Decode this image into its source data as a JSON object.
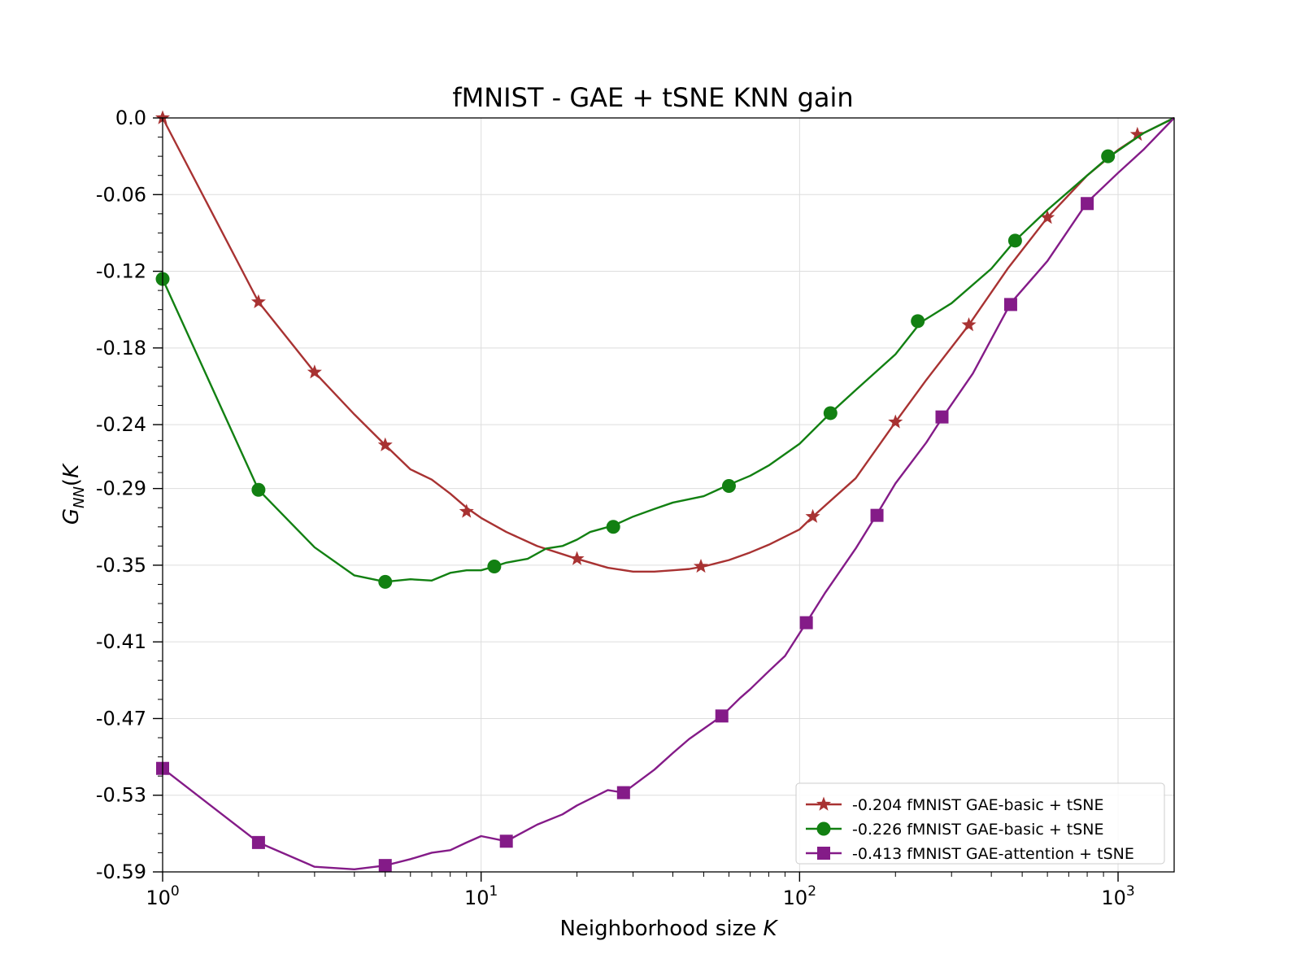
{
  "chart_data": {
    "type": "line",
    "title": "fMNIST - GAE + tSNE KNN gain",
    "xlabel": "Neighborhood size",
    "xlabel_var": "K",
    "ylabel": "G_NN(K)",
    "ylabel_parts": {
      "main": "G",
      "sub": "NN",
      "arg_open": "(",
      "arg": "K",
      "arg_close": ")"
    },
    "xscale": "log",
    "xlim": [
      1,
      1500
    ],
    "ylim": [
      -0.59,
      0.0
    ],
    "yticks": [
      0.0,
      -0.06,
      -0.12,
      -0.18,
      -0.24,
      -0.29,
      -0.35,
      -0.41,
      -0.47,
      -0.53,
      -0.59
    ],
    "ytick_labels": [
      "0.0",
      "-0.06",
      "-0.12",
      "-0.18",
      "-0.24",
      "-0.29",
      "-0.35",
      "-0.41",
      "-0.47",
      "-0.53",
      "-0.59"
    ],
    "xticks": [
      1,
      10,
      100,
      1000
    ],
    "xtick_labels": [
      {
        "base": "10",
        "exp": "0"
      },
      {
        "base": "10",
        "exp": "1"
      },
      {
        "base": "10",
        "exp": "2"
      },
      {
        "base": "10",
        "exp": "3"
      }
    ],
    "grid": true,
    "legend_position": "lower-right",
    "series": [
      {
        "name": "-0.204 fMNIST GAE-basic + tSNE",
        "color": "#a83232",
        "marker": "star",
        "x": [
          1,
          2,
          3,
          4,
          5,
          6,
          7,
          8,
          9,
          10,
          12,
          15,
          20,
          25,
          30,
          35,
          40,
          45,
          50,
          60,
          70,
          80,
          100,
          110,
          150,
          200,
          250,
          340,
          450,
          600,
          800,
          1000,
          1200,
          1500
        ],
        "y": [
          0.0,
          -0.144,
          -0.199,
          -0.232,
          -0.256,
          -0.275,
          -0.283,
          -0.294,
          -0.305,
          -0.313,
          -0.324,
          -0.335,
          -0.345,
          -0.352,
          -0.355,
          -0.355,
          -0.354,
          -0.353,
          -0.351,
          -0.346,
          -0.34,
          -0.334,
          -0.322,
          -0.312,
          -0.282,
          -0.238,
          -0.205,
          -0.162,
          -0.118,
          -0.078,
          -0.045,
          -0.025,
          -0.012,
          0.0
        ],
        "marker_x": [
          1,
          2,
          3,
          5,
          9,
          20,
          49,
          110,
          200,
          340,
          600,
          1150
        ],
        "marker_y": [
          0.0,
          -0.144,
          -0.199,
          -0.256,
          -0.308,
          -0.345,
          -0.351,
          -0.312,
          -0.238,
          -0.162,
          -0.078,
          -0.013
        ]
      },
      {
        "name": "-0.226 fMNIST GAE-basic + tSNE",
        "color": "#128012",
        "marker": "circle",
        "x": [
          1,
          2,
          3,
          4,
          5,
          6,
          7,
          8,
          9,
          10,
          11,
          12,
          14,
          16,
          18,
          20,
          22,
          26,
          30,
          35,
          40,
          50,
          60,
          70,
          80,
          100,
          125,
          150,
          200,
          240,
          300,
          400,
          475,
          600,
          800,
          930,
          1200,
          1500
        ],
        "y": [
          -0.126,
          -0.291,
          -0.336,
          -0.358,
          -0.363,
          -0.361,
          -0.362,
          -0.356,
          -0.354,
          -0.354,
          -0.351,
          -0.348,
          -0.345,
          -0.337,
          -0.335,
          -0.33,
          -0.324,
          -0.319,
          -0.312,
          -0.306,
          -0.301,
          -0.296,
          -0.287,
          -0.28,
          -0.272,
          -0.255,
          -0.231,
          -0.213,
          -0.185,
          -0.16,
          -0.145,
          -0.118,
          -0.096,
          -0.072,
          -0.045,
          -0.031,
          -0.012,
          0.0
        ],
        "marker_x": [
          1,
          2,
          5,
          11,
          26,
          60,
          125,
          235,
          475,
          930
        ],
        "marker_y": [
          -0.126,
          -0.291,
          -0.363,
          -0.351,
          -0.32,
          -0.288,
          -0.231,
          -0.159,
          -0.096,
          -0.03
        ]
      },
      {
        "name": "-0.413 fMNIST GAE-attention + tSNE",
        "color": "#841b88",
        "marker": "square",
        "x": [
          1,
          2,
          3,
          4,
          5,
          6,
          7,
          8,
          9,
          10,
          12,
          15,
          18,
          20,
          25,
          28,
          35,
          40,
          45,
          50,
          57,
          65,
          70,
          80,
          90,
          105,
          120,
          150,
          175,
          200,
          250,
          280,
          350,
          460,
          600,
          800,
          1000,
          1200,
          1500
        ],
        "y": [
          -0.509,
          -0.567,
          -0.586,
          -0.588,
          -0.585,
          -0.58,
          -0.575,
          -0.573,
          -0.567,
          -0.562,
          -0.566,
          -0.553,
          -0.545,
          -0.538,
          -0.526,
          -0.528,
          -0.51,
          -0.497,
          -0.486,
          -0.478,
          -0.468,
          -0.454,
          -0.447,
          -0.433,
          -0.421,
          -0.395,
          -0.372,
          -0.337,
          -0.31,
          -0.286,
          -0.254,
          -0.235,
          -0.2,
          -0.145,
          -0.112,
          -0.066,
          -0.043,
          -0.025,
          0.0
        ],
        "marker_x": [
          1,
          2,
          5,
          12,
          28,
          57,
          105,
          175,
          280,
          460,
          800
        ],
        "marker_y": [
          -0.509,
          -0.567,
          -0.585,
          -0.566,
          -0.528,
          -0.468,
          -0.395,
          -0.311,
          -0.234,
          -0.146,
          -0.067
        ]
      }
    ]
  }
}
